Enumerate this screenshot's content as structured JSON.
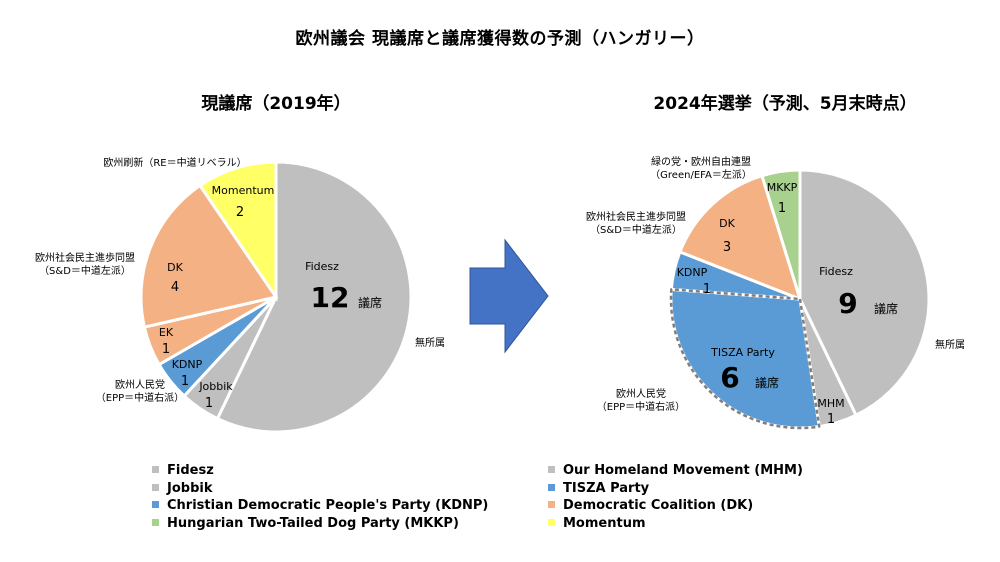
{
  "title": "欧州議会 現議席と議席獲得数の予測（ハンガリー）",
  "colors": {
    "gray": "#bfbfbf",
    "blue": "#5b9bd5",
    "orange": "#f4b183",
    "yellow": "#ffff66",
    "green": "#a9d18e",
    "arrow": "#4472c4",
    "edge": "#ffffff",
    "dashed_edge": "#7f7f7f"
  },
  "chart_data": [
    {
      "type": "pie",
      "title": "現議席（2019年）",
      "slices": [
        {
          "label": "Fidesz",
          "value": 12,
          "value_label": "12",
          "unit": "議席",
          "color_key": "gray"
        },
        {
          "label": "Jobbik",
          "value": 1,
          "value_label": "1",
          "color_key": "gray"
        },
        {
          "label": "KDNP",
          "value": 1,
          "value_label": "1",
          "color_key": "blue"
        },
        {
          "label": "EK",
          "value": 1,
          "value_label": "1",
          "color_key": "orange"
        },
        {
          "label": "DK",
          "value": 4,
          "value_label": "4",
          "color_key": "orange"
        },
        {
          "label": "Momentum",
          "value": 2,
          "value_label": "2",
          "color_key": "yellow"
        }
      ],
      "group_labels": [
        {
          "lines": [
            "無所属"
          ]
        },
        {
          "lines": [
            "欧州人民党",
            "（EPP＝中道右派）"
          ]
        },
        {
          "lines": [
            "欧州社会民主進歩同盟",
            "（S&D＝中道左派）"
          ]
        },
        {
          "lines": [
            "欧州刷新（RE＝中道リベラル）"
          ]
        }
      ]
    },
    {
      "type": "pie",
      "title": "2024年選挙（予測、5月末時点）",
      "slices": [
        {
          "label": "Fidesz",
          "value": 9,
          "value_label": "9",
          "unit": "議席",
          "color_key": "gray"
        },
        {
          "label": "MHM",
          "value": 1,
          "value_label": "1",
          "color_key": "gray"
        },
        {
          "label": "TISZA Party",
          "value": 6,
          "value_label": "6",
          "unit": "議席",
          "color_key": "blue",
          "dashed": true
        },
        {
          "label": "KDNP",
          "value": 1,
          "value_label": "1",
          "color_key": "blue"
        },
        {
          "label": "DK",
          "value": 3,
          "value_label": "3",
          "color_key": "orange"
        },
        {
          "label": "MKKP",
          "value": 1,
          "value_label": "1",
          "color_key": "green"
        }
      ],
      "group_labels": [
        {
          "lines": [
            "無所属"
          ]
        },
        {
          "lines": [
            "欧州人民党",
            "（EPP＝中道右派）"
          ]
        },
        {
          "lines": [
            "欧州社会民主進歩同盟",
            "（S&D＝中道左派）"
          ]
        },
        {
          "lines": [
            "緑の党・欧州自由連盟",
            "（Green/EFA＝左派）"
          ]
        }
      ]
    }
  ],
  "legend": {
    "left": [
      {
        "label": "Fidesz",
        "color_key": "gray"
      },
      {
        "label": "Jobbik",
        "color_key": "gray"
      },
      {
        "label": "Christian Democratic People's Party (KDNP)",
        "color_key": "blue"
      },
      {
        "label": "Hungarian Two-Tailed Dog Party (MKKP)",
        "color_key": "green"
      }
    ],
    "right": [
      {
        "label": "Our Homeland Movement (MHM)",
        "color_key": "gray"
      },
      {
        "label": "TISZA Party",
        "color_key": "blue"
      },
      {
        "label": "Democratic Coalition (DK)",
        "color_key": "orange"
      },
      {
        "label": "Momentum",
        "color_key": "yellow"
      }
    ]
  }
}
